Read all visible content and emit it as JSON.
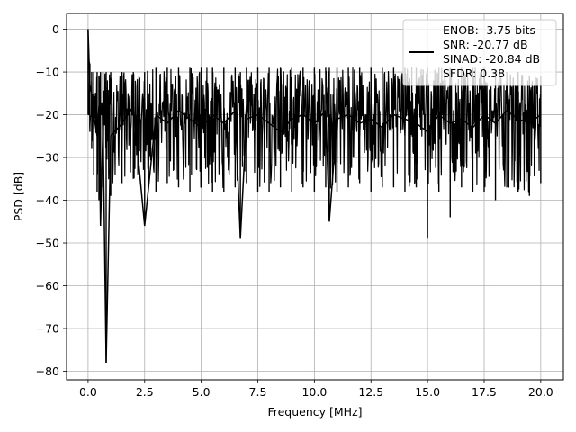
{
  "chart_data": {
    "type": "line",
    "title": "",
    "xlabel": "Frequency [MHz]",
    "ylabel": "PSD [dB]",
    "xlim": [
      -0.95,
      21.0
    ],
    "ylim": [
      -82,
      3.7
    ],
    "x_ticks": [
      0.0,
      2.5,
      5.0,
      7.5,
      10.0,
      12.5,
      15.0,
      17.5,
      20.0
    ],
    "x_tick_labels": [
      "0.0",
      "2.5",
      "5.0",
      "7.5",
      "10.0",
      "12.5",
      "15.0",
      "17.5",
      "20.0"
    ],
    "y_ticks": [
      0,
      -10,
      -20,
      -30,
      -40,
      -50,
      -60,
      -70,
      -80
    ],
    "y_tick_labels": [
      "0",
      "−10",
      "−20",
      "−30",
      "−40",
      "−50",
      "−60",
      "−70",
      "−80"
    ],
    "grid": true,
    "legend_position": "top-right",
    "legend_lines": [
      "ENOB: -3.75 bits",
      "SNR: -20.77 dB",
      "SINAD: -20.84 dB",
      "SFDR: 0.38"
    ],
    "series": [
      {
        "color": "#000000",
        "x": [
          0.0,
          0.08,
          0.16,
          0.25,
          0.4,
          0.48,
          0.55,
          0.66,
          0.8,
          1.0,
          1.5,
          2.0,
          2.5,
          3.0,
          3.5,
          4.0,
          4.5,
          5.0,
          5.5,
          6.0,
          6.5,
          6.73,
          7.0,
          7.5,
          8.0,
          8.5,
          9.0,
          9.5,
          10.0,
          10.5,
          10.66,
          11.0,
          11.5,
          12.0,
          12.5,
          13.0,
          13.5,
          14.0,
          14.5,
          15.0,
          15.5,
          16.0,
          16.5,
          17.0,
          17.5,
          18.0,
          18.5,
          19.0,
          19.5,
          20.0
        ],
        "y": [
          0,
          -13,
          -15,
          -20,
          -25,
          -18,
          -46,
          -22,
          -78,
          -25,
          -22,
          -18,
          -46,
          -20,
          -22,
          -19,
          -21,
          -23,
          -20,
          -22,
          -19,
          -49,
          -21,
          -20,
          -22,
          -24,
          -21,
          -20,
          -22,
          -19,
          -45,
          -21,
          -20,
          -22,
          -21,
          -23,
          -20,
          -21,
          -22,
          -24,
          -20,
          -22,
          -21,
          -23,
          -20,
          -22,
          -19,
          -21,
          -22,
          -20
        ],
        "envelope_upper": [
          0,
          -8,
          -10,
          -10,
          -10,
          -11,
          -10,
          -10,
          -10,
          -10,
          -10,
          -10,
          -10,
          -9,
          -9,
          -9,
          -9,
          -9,
          -9,
          -9,
          -9,
          -10,
          -9,
          -9,
          -9,
          -9,
          -9,
          -9,
          -9,
          -9,
          -9,
          -9,
          -9,
          -9,
          -9,
          -9,
          -9,
          -9,
          -9,
          -9,
          -9,
          -9,
          -9,
          -9,
          -9,
          -10,
          -10,
          -10,
          -11,
          -11
        ],
        "envelope_lower": [
          -20,
          -24,
          -28,
          -34,
          -38,
          -40,
          -46,
          -37,
          -78,
          -39,
          -36,
          -35,
          -46,
          -38,
          -36,
          -37,
          -38,
          -37,
          -38,
          -38,
          -37,
          -49,
          -36,
          -38,
          -38,
          -37,
          -38,
          -37,
          -38,
          -37,
          -45,
          -38,
          -37,
          -36,
          -38,
          -37,
          -37,
          -38,
          -37,
          -49,
          -38,
          -44,
          -37,
          -38,
          -38,
          -40,
          -37,
          -38,
          -39,
          -36
        ]
      }
    ]
  }
}
